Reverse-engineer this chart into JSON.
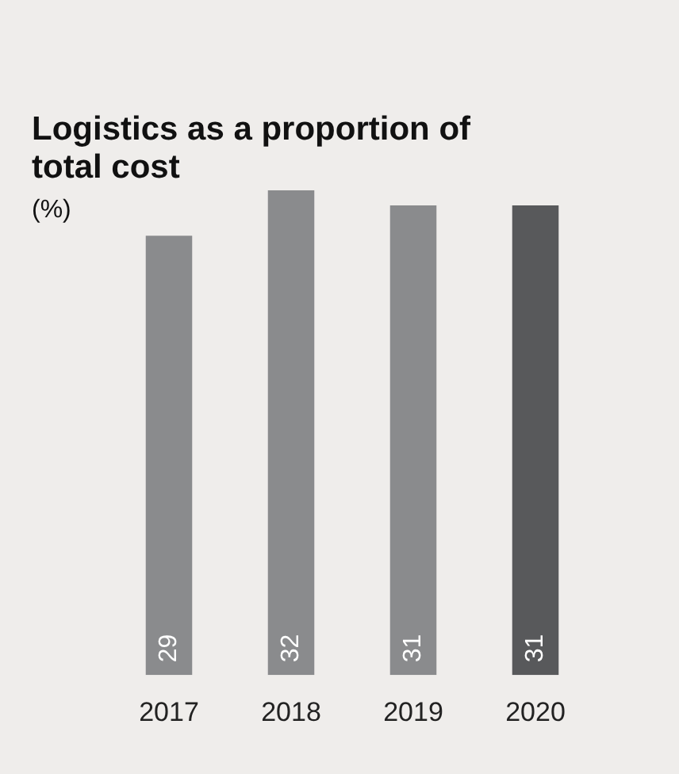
{
  "chart_data": {
    "type": "bar",
    "title": "Logistics as a proportion of total cost",
    "subtitle": "(%)",
    "categories": [
      "2017",
      "2018",
      "2019",
      "2020"
    ],
    "values": [
      29,
      32,
      31,
      31
    ],
    "colors": [
      "#8a8b8d",
      "#8a8b8d",
      "#8a8b8d",
      "#58595b"
    ],
    "tick_labels": "x",
    "data_labels": true,
    "grid": false,
    "legend": false
  }
}
